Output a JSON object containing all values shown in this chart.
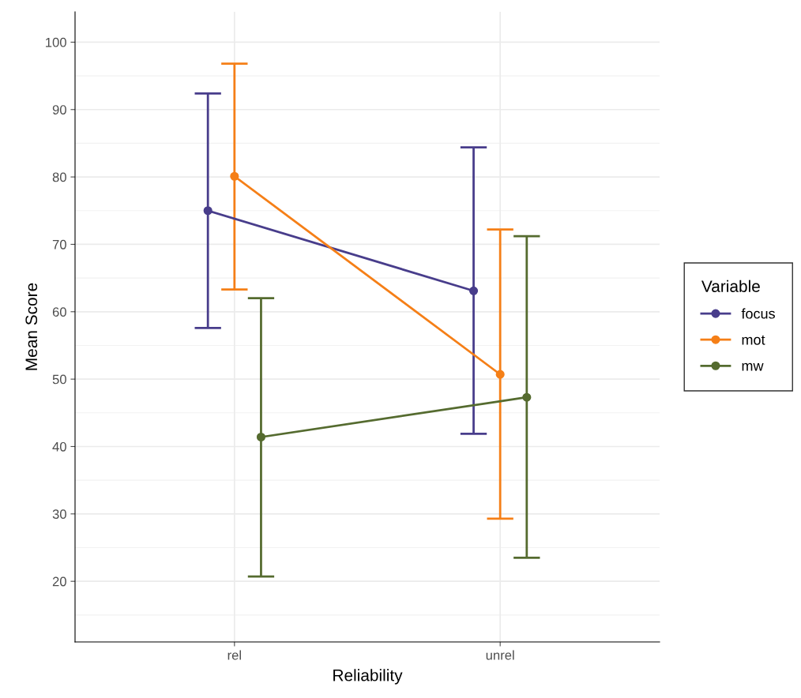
{
  "chart_data": {
    "type": "line",
    "xlabel": "Reliability",
    "ylabel": "Mean Score",
    "legend_title": "Variable",
    "categories": [
      "rel",
      "unrel"
    ],
    "ylim": [
      11,
      104.5
    ],
    "yticks": [
      20,
      30,
      40,
      50,
      60,
      70,
      80,
      90,
      100
    ],
    "grid": true,
    "legend": "right",
    "marker": "circle",
    "line_style": "solid",
    "series": [
      {
        "name": "focus",
        "color": "#483d8b",
        "values": [
          75.0,
          63.1
        ],
        "errors": [
          [
            57.6,
            92.4
          ],
          [
            41.9,
            84.4
          ]
        ]
      },
      {
        "name": "mot",
        "color": "#f57f17",
        "values": [
          80.1,
          50.7
        ],
        "errors": [
          [
            63.3,
            96.8
          ],
          [
            29.3,
            72.2
          ]
        ]
      },
      {
        "name": "mw",
        "color": "#556b2f",
        "values": [
          41.4,
          47.3
        ],
        "errors": [
          [
            20.7,
            62.0
          ],
          [
            23.5,
            71.2
          ]
        ]
      }
    ]
  }
}
